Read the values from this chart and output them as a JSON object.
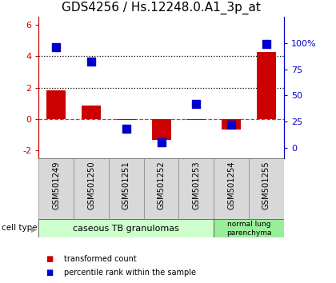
{
  "title": "GDS4256 / Hs.12248.0.A1_3p_at",
  "samples": [
    "GSM501249",
    "GSM501250",
    "GSM501251",
    "GSM501252",
    "GSM501253",
    "GSM501254",
    "GSM501255"
  ],
  "transformed_count": [
    1.85,
    0.85,
    -0.05,
    -1.3,
    -0.05,
    -0.65,
    4.3
  ],
  "percentile_rank": [
    96,
    82,
    18,
    5,
    42,
    22,
    99
  ],
  "ylim_left": [
    -2.5,
    6.5
  ],
  "ylim_right": [
    -10.42,
    125
  ],
  "yticks_left": [
    -2,
    0,
    2,
    4,
    6
  ],
  "yticks_right": [
    0,
    25,
    50,
    75,
    100
  ],
  "ytick_labels_right": [
    "0",
    "25",
    "50",
    "75",
    "100%"
  ],
  "bar_color": "#cc0000",
  "dot_color": "#0000cc",
  "dot_size": 55,
  "bar_width": 0.55,
  "group1_indices": [
    0,
    1,
    2,
    3,
    4
  ],
  "group2_indices": [
    5,
    6
  ],
  "group1_label": "caseous TB granulomas",
  "group2_label": "normal lung\nparenchyma",
  "group1_color": "#ccffcc",
  "group2_color": "#99ee99",
  "cell_type_label": "cell type",
  "legend_bar_label": "transformed count",
  "legend_dot_label": "percentile rank within the sample",
  "title_fontsize": 11,
  "axis_fontsize": 8.5,
  "tick_label_fontsize": 8
}
